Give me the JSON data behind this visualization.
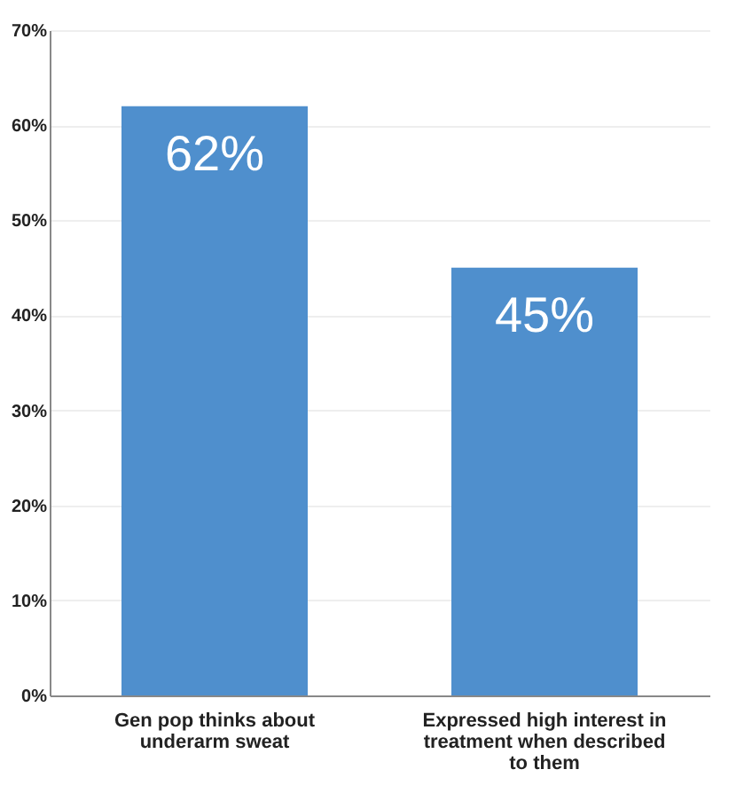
{
  "chart_data": {
    "type": "bar",
    "categories": [
      "Gen pop thinks about underarm sweat",
      "Expressed high interest in treatment when described to them"
    ],
    "values": [
      62,
      45
    ],
    "color": "#4f8fcd",
    "value_labels": [
      "62%",
      "45%"
    ],
    "ylim": [
      0,
      70
    ],
    "yticks": [
      {
        "value": 0,
        "label": "0%"
      },
      {
        "value": 10,
        "label": "10%"
      },
      {
        "value": 20,
        "label": "20%"
      },
      {
        "value": 30,
        "label": "30%"
      },
      {
        "value": 40,
        "label": "40%"
      },
      {
        "value": 50,
        "label": "50%"
      },
      {
        "value": 60,
        "label": "60%"
      },
      {
        "value": 70,
        "label": "70%"
      }
    ],
    "grid": "y"
  }
}
